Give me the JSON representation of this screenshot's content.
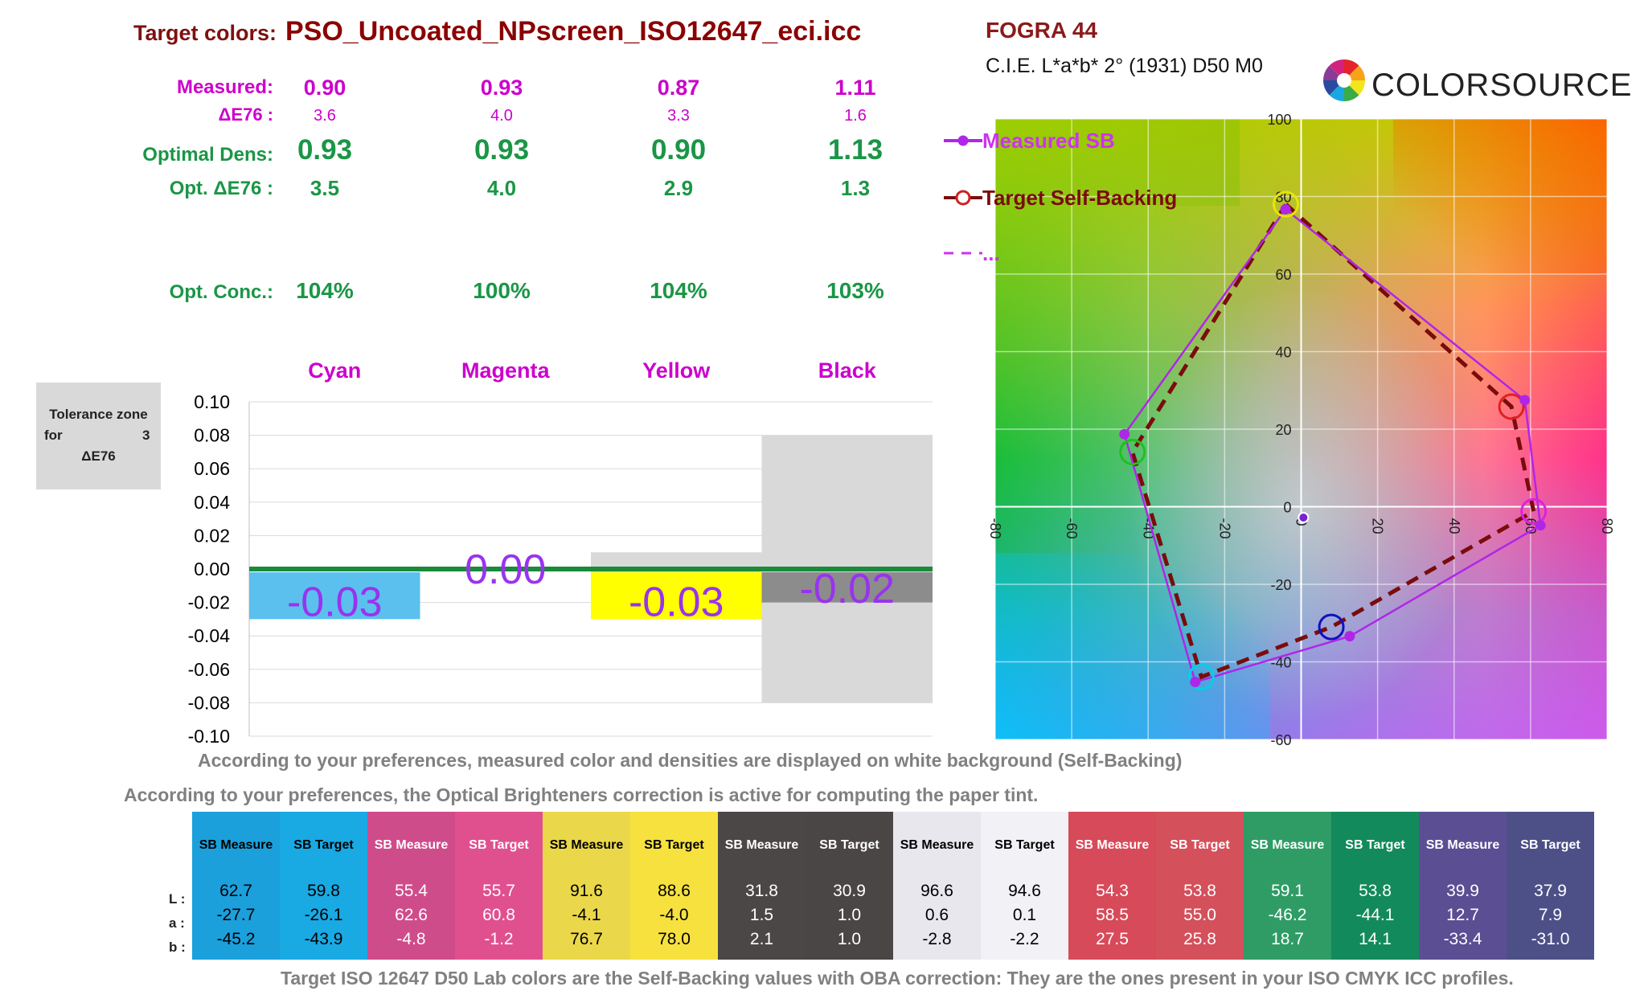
{
  "header": {
    "target_label": "Target colors:",
    "profile": "PSO_Uncoated_NPscreen_ISO12647_eci.icc",
    "fogra": "FOGRA 44",
    "cie": "C.I.E. L*a*b* 2° (1931) D50  M0",
    "brand": "COLORSOURCE"
  },
  "metrics": {
    "labels": {
      "measured": "Measured:",
      "de76": "ΔE76 :",
      "optimal_dens": "Optimal Dens:",
      "opt_de76": "Opt. ΔE76 :",
      "opt_conc": "Opt. Conc.:"
    },
    "measured": [
      "0.90",
      "0.93",
      "0.87",
      "1.11"
    ],
    "de76": [
      "3.6",
      "4.0",
      "3.3",
      "1.6"
    ],
    "optimal_dens": [
      "0.93",
      "0.93",
      "0.90",
      "1.13"
    ],
    "opt_de76": [
      "3.5",
      "4.0",
      "2.9",
      "1.3"
    ],
    "opt_conc": [
      "104%",
      "100%",
      "104%",
      "103%"
    ]
  },
  "tolerance": {
    "label": "Tolerance zone",
    "for": "for",
    "value": "3",
    "unit": "ΔE76"
  },
  "notes": {
    "self_backing": "According to your preferences, measured color and densities are displayed on white background (Self-Backing)",
    "oba": "According to your preferences, the Optical Brighteners correction is active for computing the paper tint.",
    "footer": "Target ISO 12647 D50 Lab colors are the Self-Backing values with OBA correction: They are the ones present in your ISO CMYK ICC profiles."
  },
  "chart_data": [
    {
      "type": "bar",
      "categories": [
        "Cyan",
        "Magenta",
        "Yellow",
        "Black"
      ],
      "values": [
        -0.03,
        0.0,
        -0.03,
        -0.02
      ],
      "value_labels": [
        "-0.03",
        "0.00",
        "-0.03",
        "-0.02"
      ],
      "bar_colors": [
        "#5bc0ee",
        "#d040c0",
        "#ffff00",
        "#8c8c8c"
      ],
      "tolerance_band": [
        0.0,
        0.0,
        0.01,
        0.08
      ],
      "tolerance_band_low": [
        0.0,
        0.0,
        -0.03,
        -0.08
      ],
      "ylim": [
        -0.1,
        0.1
      ],
      "yticks": [
        "0.10",
        "0.08",
        "0.06",
        "0.04",
        "0.02",
        "0.00",
        "-0.02",
        "-0.04",
        "-0.06",
        "-0.08",
        "-0.10"
      ],
      "grid": true
    },
    {
      "type": "scatter",
      "xlim": [
        -80,
        80
      ],
      "ylim": [
        -60,
        100
      ],
      "xticks": [
        "-80",
        "-60",
        "-40",
        "-20",
        "0",
        "20",
        "40",
        "60",
        "80"
      ],
      "yticks": [
        "100",
        "80",
        "60",
        "40",
        "20",
        "0",
        "-20",
        "-40",
        "-60"
      ],
      "legend": [
        "Measured SB",
        "Target Self-Backing",
        "..."
      ],
      "legend_position": "top-left",
      "series": [
        {
          "name": "Measured SB",
          "color": "#b026e8",
          "points": [
            [
              -4.1,
              76.7
            ],
            [
              58.5,
              27.5
            ],
            [
              62.6,
              -4.8
            ],
            [
              12.7,
              -33.4
            ],
            [
              -27.7,
              -45.2
            ],
            [
              -46.2,
              18.7
            ]
          ]
        },
        {
          "name": "Target Self-Backing",
          "color": "#7a0c0c",
          "points": [
            [
              -4.0,
              78.0
            ],
            [
              55.0,
              25.8
            ],
            [
              60.8,
              -1.2
            ],
            [
              7.9,
              -31.0
            ],
            [
              -26.1,
              -43.9
            ],
            [
              -44.1,
              14.1
            ]
          ]
        }
      ],
      "target_circle_colors": [
        "#e6e600",
        "#e02020",
        "#e020e0",
        "#1010c0",
        "#00d0e8",
        "#20c020"
      ],
      "paper_points": [
        [
          0.6,
          -2.8
        ],
        [
          0.1,
          -2.2
        ]
      ]
    }
  ],
  "swatches": {
    "row_labels": [
      "L :",
      "a :",
      "b :"
    ],
    "columns": [
      {
        "header": "SB Measure",
        "bg": "#1ba0dc",
        "L": "62.7",
        "a": "-27.7",
        "b": "-45.2",
        "fg": "#000000"
      },
      {
        "header": "SB Target",
        "bg": "#19a9e3",
        "L": "59.8",
        "a": "-26.1",
        "b": "-43.9",
        "fg": "#000000"
      },
      {
        "header": "SB Measure",
        "bg": "#cf4c8b",
        "L": "55.4",
        "a": "62.6",
        "b": "-4.8",
        "fg": "#ffffff"
      },
      {
        "header": "SB Target",
        "bg": "#e0508e",
        "L": "55.7",
        "a": "60.8",
        "b": "-1.2",
        "fg": "#ffffff"
      },
      {
        "header": "SB Measure",
        "bg": "#ead84a",
        "L": "91.6",
        "a": "-4.1",
        "b": "76.7",
        "fg": "#000000"
      },
      {
        "header": "SB Target",
        "bg": "#f7e13f",
        "L": "88.6",
        "a": "-4.0",
        "b": "78.0",
        "fg": "#000000"
      },
      {
        "header": "SB Measure",
        "bg": "#4b4746",
        "L": "31.8",
        "a": "1.5",
        "b": "2.1",
        "fg": "#ffffff"
      },
      {
        "header": "SB Target",
        "bg": "#494645",
        "L": "30.9",
        "a": "1.0",
        "b": "1.0",
        "fg": "#ffffff"
      },
      {
        "header": "SB Measure",
        "bg": "#e9e7ee",
        "L": "96.6",
        "a": "0.6",
        "b": "-2.8",
        "fg": "#000000"
      },
      {
        "header": "SB Target",
        "bg": "#f2f1f5",
        "L": "94.6",
        "a": "0.1",
        "b": "-2.2",
        "fg": "#000000"
      },
      {
        "header": "SB Measure",
        "bg": "#d74a5a",
        "L": "54.3",
        "a": "58.5",
        "b": "27.5",
        "fg": "#ffffff"
      },
      {
        "header": "SB Target",
        "bg": "#d4505b",
        "L": "53.8",
        "a": "55.0",
        "b": "25.8",
        "fg": "#ffffff"
      },
      {
        "header": "SB Measure",
        "bg": "#2f9c66",
        "L": "59.1",
        "a": "-46.2",
        "b": "18.7",
        "fg": "#ffffff"
      },
      {
        "header": "SB Target",
        "bg": "#138a5b",
        "L": "53.8",
        "a": "-44.1",
        "b": "14.1",
        "fg": "#ffffff"
      },
      {
        "header": "SB Measure",
        "bg": "#5b4e93",
        "L": "39.9",
        "a": "12.7",
        "b": "-33.4",
        "fg": "#ffffff"
      },
      {
        "header": "SB Target",
        "bg": "#4d5087",
        "L": "37.9",
        "a": "7.9",
        "b": "-31.0",
        "fg": "#ffffff"
      }
    ]
  }
}
